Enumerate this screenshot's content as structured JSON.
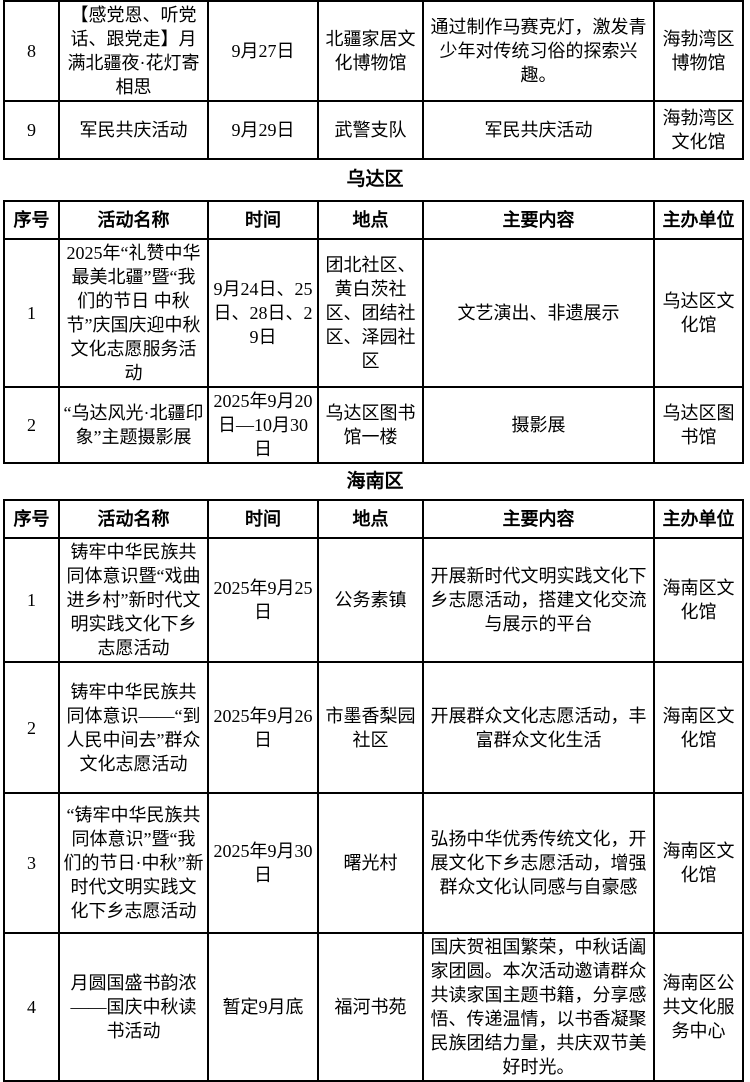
{
  "colors": {
    "background": "#ffffff",
    "text": "#000000",
    "border": "#000000"
  },
  "haibowan": {
    "rows": [
      {
        "seq": "8",
        "name": "【感党恩、听党话、跟党走】月满北疆夜·花灯寄相思",
        "time": "9月27日",
        "place": "北疆家居文化博物馆",
        "content": "通过制作马赛克灯，激发青少年对传统习俗的探索兴趣。",
        "organizer": "海勃湾区博物馆"
      },
      {
        "seq": "9",
        "name": "军民共庆活动",
        "time": "9月29日",
        "place": "武警支队",
        "content": "军民共庆活动",
        "organizer": "海勃湾区文化馆"
      }
    ]
  },
  "wuda": {
    "title": "乌达区",
    "headers": {
      "seq": "序号",
      "name": "活动名称",
      "time": "时间",
      "place": "地点",
      "content": "主要内容",
      "organizer": "主办单位"
    },
    "rows": [
      {
        "seq": "1",
        "name": "2025年“礼赞中华 最美北疆”暨“我们的节日 中秋节”庆国庆迎中秋文化志愿服务活动",
        "time": "9月24日、25日、28日、29日",
        "place": "团北社区、黄白茨社区、团结社区、泽园社区",
        "content": "文艺演出、非遗展示",
        "organizer": "乌达区文化馆"
      },
      {
        "seq": "2",
        "name": "“乌达风光·北疆印象”主题摄影展",
        "time": "2025年9月20日—10月30日",
        "place": "乌达区图书馆一楼",
        "content": "摄影展",
        "organizer": "乌达区图书馆"
      }
    ]
  },
  "hainan": {
    "title": "海南区",
    "headers": {
      "seq": "序号",
      "name": "活动名称",
      "time": "时间",
      "place": "地点",
      "content": "主要内容",
      "organizer": "主办单位"
    },
    "rows": [
      {
        "seq": "1",
        "name": "铸牢中华民族共同体意识暨“戏曲进乡村”新时代文明实践文化下乡志愿活动",
        "time": "2025年9月25日",
        "place": "公务素镇",
        "content": "开展新时代文明实践文化下乡志愿活动，搭建文化交流与展示的平台",
        "organizer": "海南区文化馆"
      },
      {
        "seq": "2",
        "name": "铸牢中华民族共同体意识——“到人民中间去”群众文化志愿活动",
        "time": "2025年9月26日",
        "place": "市墨香梨园社区",
        "content": "开展群众文化志愿活动，丰富群众文化生活",
        "organizer": "海南区文化馆"
      },
      {
        "seq": "3",
        "name": "“铸牢中华民族共同体意识”暨“我们的节日·中秋”新时代文明实践文化下乡志愿活动",
        "time": "2025年9月30日",
        "place": "曙光村",
        "content": "弘扬中华优秀传统文化，开展文化下乡志愿活动，增强群众文化认同感与自豪感",
        "organizer": "海南区文化馆"
      },
      {
        "seq": "4",
        "name": "月圆国盛书韵浓——国庆中秋读书活动",
        "time": "暂定9月底",
        "place": "福河书苑",
        "content": "国庆贺祖国繁荣，中秋话阖家团圆。本次活动邀请群众共读家国主题书籍，分享感悟、传递温情，以书香凝聚民族团结力量，共庆双节美好时光。",
        "organizer": "海南区公共文化服务中心"
      }
    ]
  }
}
